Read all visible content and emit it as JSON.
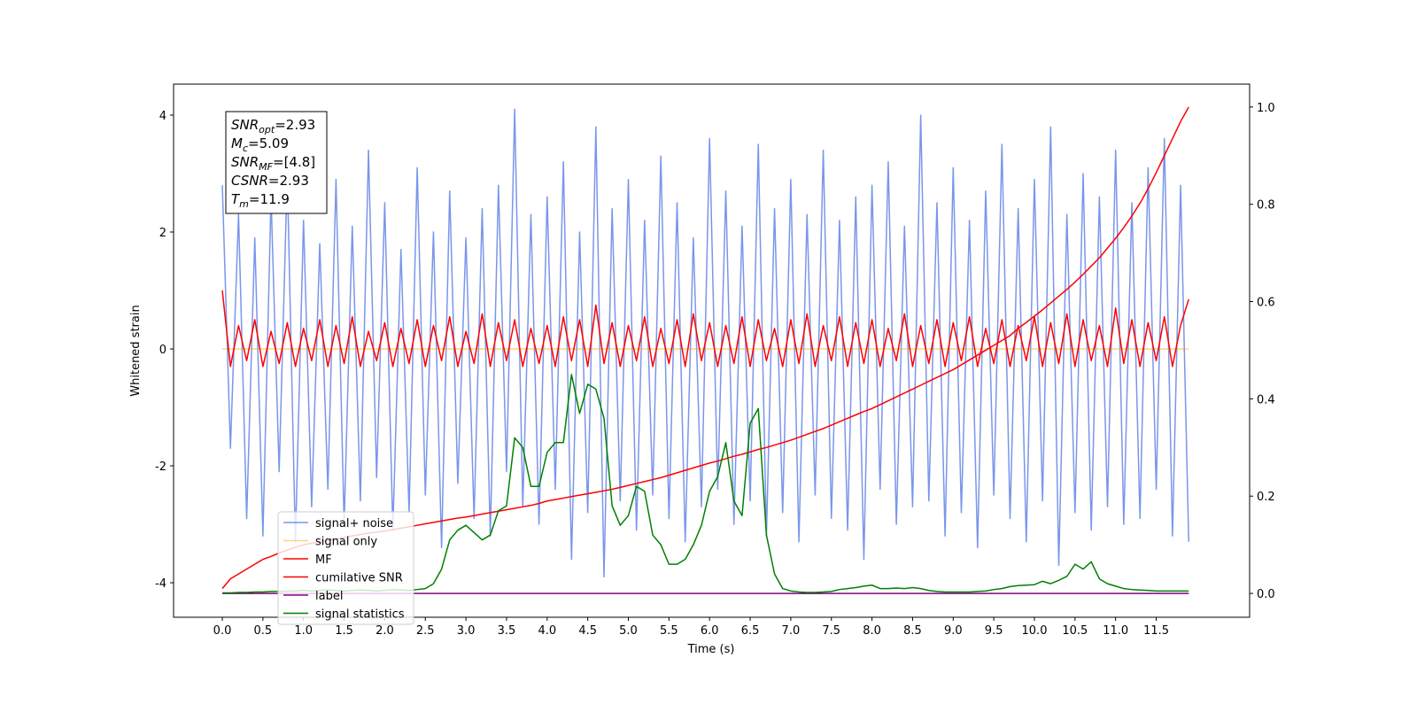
{
  "chart_data": {
    "type": "line",
    "xlabel": "Time (s)",
    "ylabel": "Whitened strain",
    "xlim": [
      -0.6,
      12.65
    ],
    "ylim": [
      -4.59,
      4.53
    ],
    "y2lim": [
      -0.049,
      1.047
    ],
    "xticks": [
      {
        "value": 0,
        "label": "0.0"
      },
      0.5,
      {
        "value": 1,
        "label": "1.0"
      },
      1.5,
      {
        "value": 2,
        "label": "2.0"
      },
      2.5,
      {
        "value": 3,
        "label": "3.0"
      },
      3.5,
      {
        "value": 4,
        "label": "4.0"
      },
      4.5,
      {
        "value": 5,
        "label": "5.0"
      },
      5.5,
      {
        "value": 6,
        "label": "6.0"
      },
      6.5,
      {
        "value": 7,
        "label": "7.0"
      },
      7.5,
      {
        "value": 8,
        "label": "8.0"
      },
      8.5,
      {
        "value": 9,
        "label": "9.0"
      },
      9.5,
      {
        "value": 10,
        "label": "10.0"
      },
      10.5,
      {
        "value": 11,
        "label": "11.0"
      },
      11.5
    ],
    "yticks": [
      -4,
      -2,
      0,
      2,
      4
    ],
    "y2ticks": [
      {
        "value": 0,
        "label": "0.0"
      },
      0.2,
      0.4,
      0.6,
      0.8,
      {
        "value": 1,
        "label": "1.0"
      }
    ],
    "legend": "lower left",
    "annotations": [
      {
        "symbol": "SNR",
        "subscript": "opt",
        "value": "=2.93"
      },
      {
        "symbol": "M",
        "subscript": "c",
        "value": "=5.09"
      },
      {
        "symbol": "SNR",
        "subscript": "MF",
        "value": "=[4.8]"
      },
      {
        "symbol": "CSNR",
        "value": "=2.93"
      },
      {
        "symbol": "T",
        "subscript": "m",
        "value": "=11.9"
      }
    ],
    "x": [
      0,
      0.1,
      0.2,
      0.3,
      0.4,
      0.5,
      0.6,
      0.7,
      0.8,
      0.9,
      1,
      1.1,
      1.2,
      1.3,
      1.4,
      1.5,
      1.6,
      1.7,
      1.8,
      1.9,
      2,
      2.1,
      2.2,
      2.3,
      2.4,
      2.5,
      2.6,
      2.7,
      2.8,
      2.9,
      3,
      3.1,
      3.2,
      3.3,
      3.4,
      3.5,
      3.6,
      3.7,
      3.8,
      3.9,
      4,
      4.1,
      4.2,
      4.3,
      4.4,
      4.5,
      4.6,
      4.7,
      4.8,
      4.9,
      5,
      5.1,
      5.2,
      5.3,
      5.4,
      5.5,
      5.6,
      5.7,
      5.8,
      5.9,
      6,
      6.1,
      6.2,
      6.3,
      6.4,
      6.5,
      6.6,
      6.7,
      6.8,
      6.9,
      7,
      7.1,
      7.2,
      7.3,
      7.4,
      7.5,
      7.6,
      7.7,
      7.8,
      7.9,
      8,
      8.1,
      8.2,
      8.3,
      8.4,
      8.5,
      8.6,
      8.7,
      8.8,
      8.9,
      9,
      9.1,
      9.2,
      9.3,
      9.4,
      9.5,
      9.6,
      9.7,
      9.8,
      9.9,
      10,
      10.1,
      10.2,
      10.3,
      10.4,
      10.5,
      10.6,
      10.7,
      10.8,
      10.9,
      11,
      11.1,
      11.2,
      11.3,
      11.4,
      11.5,
      11.6,
      11.7,
      11.8,
      11.9
    ],
    "series": [
      {
        "name": "signal+ noise",
        "color": "#4169e1",
        "alpha": 0.7,
        "values": [
          2.8,
          -1.7,
          2.3,
          -2.9,
          1.9,
          -3.2,
          2.6,
          -2.1,
          3.0,
          -3.3,
          2.2,
          -2.7,
          1.8,
          -2.4,
          2.9,
          -3.0,
          2.1,
          -2.6,
          3.4,
          -2.2,
          2.5,
          -3.1,
          1.7,
          -2.8,
          3.1,
          -2.5,
          2.0,
          -3.4,
          2.7,
          -2.3,
          1.9,
          -2.9,
          2.4,
          -3.2,
          2.8,
          -2.1,
          4.1,
          -2.7,
          2.3,
          -3.0,
          2.6,
          -2.4,
          3.2,
          -3.6,
          2.0,
          -2.8,
          3.8,
          -3.9,
          2.4,
          -2.6,
          2.9,
          -3.1,
          2.2,
          -2.5,
          3.3,
          -2.9,
          2.5,
          -3.3,
          1.9,
          -2.7,
          3.6,
          -2.4,
          2.7,
          -3.0,
          2.1,
          -2.6,
          3.5,
          -3.2,
          2.4,
          -2.8,
          2.9,
          -3.3,
          2.3,
          -2.5,
          3.4,
          -2.9,
          2.2,
          -3.1,
          2.6,
          -3.6,
          2.8,
          -2.4,
          3.2,
          -3.0,
          2.1,
          -2.7,
          4.0,
          -2.6,
          2.5,
          -3.2,
          3.1,
          -2.8,
          2.2,
          -3.4,
          2.7,
          -2.5,
          3.5,
          -2.9,
          2.4,
          -3.3,
          2.9,
          -2.6,
          3.8,
          -3.7,
          2.3,
          -2.8,
          3.0,
          -3.1,
          2.6,
          -2.7,
          3.4,
          -3.0,
          2.5,
          -2.9,
          3.1,
          -2.4,
          3.6,
          -3.2,
          2.8,
          -3.3
        ]
      },
      {
        "name": "signal only",
        "color": "#ffa500",
        "alpha": 0.5,
        "values": [
          0,
          0,
          0,
          0,
          0,
          0,
          0,
          0,
          0,
          0,
          0,
          0,
          0,
          0,
          0,
          0,
          0,
          0,
          0,
          0,
          0,
          0,
          0,
          0,
          0,
          0,
          0,
          0,
          0,
          0,
          0,
          0,
          0,
          0,
          0,
          0,
          0,
          0,
          0,
          0,
          0,
          0,
          0,
          0,
          0,
          0,
          0,
          0,
          0,
          0,
          0,
          0,
          0,
          0,
          0,
          0,
          0,
          0,
          0,
          0,
          0,
          0,
          0,
          0,
          0,
          0,
          0,
          0,
          0,
          0,
          0,
          0,
          0,
          0,
          0,
          0,
          0,
          0,
          0,
          0,
          0,
          0,
          0,
          0,
          0,
          0,
          0,
          0,
          0,
          0,
          0,
          0,
          0,
          0,
          0,
          0,
          0,
          0,
          0,
          0,
          0,
          0,
          0,
          0,
          0,
          0,
          0,
          0,
          0,
          0,
          0,
          0,
          0,
          0,
          0,
          0,
          0,
          0,
          0,
          0
        ]
      },
      {
        "name": "MF",
        "color": "#ff0000",
        "alpha": 1,
        "values": [
          1.0,
          -0.3,
          0.4,
          -0.2,
          0.5,
          -0.3,
          0.3,
          -0.25,
          0.45,
          -0.3,
          0.35,
          -0.2,
          0.5,
          -0.3,
          0.4,
          -0.25,
          0.55,
          -0.3,
          0.3,
          -0.2,
          0.45,
          -0.3,
          0.35,
          -0.25,
          0.5,
          -0.3,
          0.4,
          -0.2,
          0.55,
          -0.3,
          0.3,
          -0.25,
          0.6,
          -0.3,
          0.45,
          -0.2,
          0.5,
          -0.3,
          0.35,
          -0.25,
          0.4,
          -0.3,
          0.55,
          -0.2,
          0.5,
          -0.3,
          0.75,
          -0.25,
          0.45,
          -0.3,
          0.4,
          -0.2,
          0.55,
          -0.3,
          0.35,
          -0.25,
          0.5,
          -0.3,
          0.6,
          -0.2,
          0.45,
          -0.3,
          0.4,
          -0.25,
          0.55,
          -0.3,
          0.5,
          -0.2,
          0.35,
          -0.3,
          0.5,
          -0.25,
          0.6,
          -0.3,
          0.4,
          -0.2,
          0.55,
          -0.3,
          0.45,
          -0.25,
          0.5,
          -0.3,
          0.35,
          -0.2,
          0.6,
          -0.3,
          0.4,
          -0.25,
          0.5,
          -0.3,
          0.45,
          -0.2,
          0.55,
          -0.3,
          0.35,
          -0.25,
          0.5,
          -0.3,
          0.4,
          -0.2,
          0.55,
          -0.3,
          0.45,
          -0.25,
          0.6,
          -0.3,
          0.5,
          -0.2,
          0.4,
          -0.3,
          0.7,
          -0.25,
          0.5,
          -0.3,
          0.45,
          -0.2,
          0.55,
          -0.3,
          0.4,
          0.85
        ]
      },
      {
        "name": "cumilative SNR",
        "color": "#ff0000",
        "alpha": 1,
        "axis": "y2",
        "values": [
          0.01,
          0.03,
          0.04,
          0.05,
          0.06,
          0.07,
          0.076,
          0.083,
          0.089,
          0.095,
          0.1,
          0.103,
          0.106,
          0.109,
          0.112,
          0.115,
          0.118,
          0.121,
          0.124,
          0.126,
          0.128,
          0.131,
          0.134,
          0.137,
          0.14,
          0.143,
          0.146,
          0.149,
          0.152,
          0.155,
          0.157,
          0.16,
          0.163,
          0.166,
          0.169,
          0.172,
          0.175,
          0.178,
          0.181,
          0.185,
          0.19,
          0.193,
          0.196,
          0.199,
          0.202,
          0.205,
          0.208,
          0.211,
          0.214,
          0.218,
          0.222,
          0.226,
          0.23,
          0.234,
          0.238,
          0.243,
          0.248,
          0.253,
          0.258,
          0.263,
          0.268,
          0.272,
          0.277,
          0.282,
          0.286,
          0.291,
          0.296,
          0.3,
          0.305,
          0.31,
          0.315,
          0.321,
          0.327,
          0.333,
          0.339,
          0.346,
          0.353,
          0.36,
          0.367,
          0.374,
          0.38,
          0.388,
          0.396,
          0.404,
          0.412,
          0.42,
          0.428,
          0.436,
          0.444,
          0.452,
          0.46,
          0.47,
          0.48,
          0.49,
          0.5,
          0.51,
          0.52,
          0.53,
          0.545,
          0.557,
          0.57,
          0.583,
          0.597,
          0.611,
          0.625,
          0.64,
          0.656,
          0.673,
          0.69,
          0.71,
          0.73,
          0.752,
          0.776,
          0.802,
          0.832,
          0.865,
          0.9,
          0.935,
          0.97,
          1.0
        ]
      },
      {
        "name": "label",
        "color": "#800080",
        "alpha": 1,
        "axis": "y2",
        "values": [
          0,
          0,
          0,
          0,
          0,
          0,
          0,
          0,
          0,
          0,
          0,
          0,
          0,
          0,
          0,
          0,
          0,
          0,
          0,
          0,
          0,
          0,
          0,
          0,
          0,
          0,
          0,
          0,
          0,
          0,
          0,
          0,
          0,
          0,
          0,
          0,
          0,
          0,
          0,
          0,
          0,
          0,
          0,
          0,
          0,
          0,
          0,
          0,
          0,
          0,
          0,
          0,
          0,
          0,
          0,
          0,
          0,
          0,
          0,
          0,
          0,
          0,
          0,
          0,
          0,
          0,
          0,
          0,
          0,
          0,
          0,
          0,
          0,
          0,
          0,
          0,
          0,
          0,
          0,
          0,
          0,
          0,
          0,
          0,
          0,
          0,
          0,
          0,
          0,
          0,
          0,
          0,
          0,
          0,
          0,
          0,
          0,
          0,
          0,
          0,
          0,
          0,
          0,
          0,
          0,
          0,
          0,
          0,
          0,
          0,
          0,
          0,
          0,
          0,
          0,
          0,
          0,
          0,
          0,
          0
        ]
      },
      {
        "name": "signal statistics",
        "color": "#008000",
        "alpha": 1,
        "axis": "y2",
        "values": [
          0.001,
          0.001,
          0.002,
          0.002,
          0.003,
          0.003,
          0.004,
          0.004,
          0.005,
          0.005,
          0.006,
          0.005,
          0.006,
          0.007,
          0.006,
          0.005,
          0.006,
          0.007,
          0.006,
          0.005,
          0.006,
          0.008,
          0.007,
          0.006,
          0.008,
          0.01,
          0.02,
          0.05,
          0.11,
          0.13,
          0.14,
          0.125,
          0.11,
          0.12,
          0.17,
          0.18,
          0.32,
          0.3,
          0.22,
          0.22,
          0.29,
          0.31,
          0.31,
          0.45,
          0.37,
          0.43,
          0.42,
          0.36,
          0.18,
          0.14,
          0.16,
          0.22,
          0.21,
          0.12,
          0.1,
          0.06,
          0.06,
          0.07,
          0.1,
          0.14,
          0.21,
          0.24,
          0.31,
          0.19,
          0.16,
          0.35,
          0.38,
          0.12,
          0.04,
          0.01,
          0.005,
          0.003,
          0.002,
          0.002,
          0.003,
          0.004,
          0.008,
          0.01,
          0.012,
          0.015,
          0.017,
          0.01,
          0.01,
          0.011,
          0.01,
          0.012,
          0.01,
          0.006,
          0.004,
          0.003,
          0.003,
          0.003,
          0.003,
          0.004,
          0.005,
          0.008,
          0.01,
          0.014,
          0.016,
          0.017,
          0.018,
          0.025,
          0.02,
          0.027,
          0.035,
          0.06,
          0.05,
          0.065,
          0.03,
          0.02,
          0.015,
          0.01,
          0.008,
          0.007,
          0.006,
          0.005,
          0.005,
          0.005,
          0.005,
          0.005
        ]
      }
    ]
  }
}
